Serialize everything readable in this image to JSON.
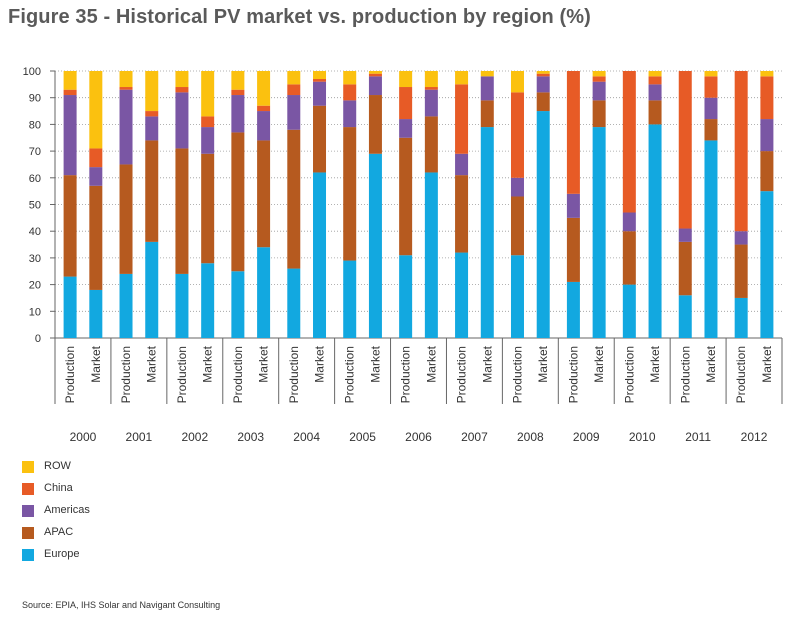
{
  "title": "Figure 35 - Historical PV market vs. production by region (%)",
  "source": "Source: EPIA, IHS Solar and Navigant Consulting",
  "colors": {
    "Europe": "#12a8e0",
    "APAC": "#b65a1f",
    "Americas": "#7a56a4",
    "China": "#e75b26",
    "ROW": "#fbc10f",
    "axis": "#666666",
    "grid": "#999999",
    "text": "#333333"
  },
  "legend": [
    {
      "name": "ROW",
      "color": "#fbc10f"
    },
    {
      "name": "China",
      "color": "#e75b26"
    },
    {
      "name": "Americas",
      "color": "#7a56a4"
    },
    {
      "name": "APAC",
      "color": "#b65a1f"
    },
    {
      "name": "Europe",
      "color": "#12a8e0"
    }
  ],
  "chart_data": {
    "type": "bar",
    "stacked": true,
    "title": "Figure 35 - Historical PV market vs. production by region (%)",
    "ylim": [
      0,
      100
    ],
    "yticks": [
      0,
      10,
      20,
      30,
      40,
      50,
      60,
      70,
      80,
      90,
      100
    ],
    "stack_order": [
      "Europe",
      "APAC",
      "Americas",
      "China",
      "ROW"
    ],
    "years": [
      "2000",
      "2001",
      "2002",
      "2003",
      "2004",
      "2005",
      "2006",
      "2007",
      "2008",
      "2009",
      "2010",
      "2011",
      "2012"
    ],
    "bar_labels": [
      "Production",
      "Market"
    ],
    "groups": [
      {
        "year": "2000",
        "bars": [
          {
            "label": "Production",
            "Europe": 23,
            "APAC": 38,
            "Americas": 30,
            "China": 2,
            "ROW": 7
          },
          {
            "label": "Market",
            "Europe": 18,
            "APAC": 39,
            "Americas": 7,
            "China": 7,
            "ROW": 29
          }
        ]
      },
      {
        "year": "2001",
        "bars": [
          {
            "label": "Production",
            "Europe": 24,
            "APAC": 41,
            "Americas": 28,
            "China": 1,
            "ROW": 6
          },
          {
            "label": "Market",
            "Europe": 36,
            "APAC": 38,
            "Americas": 9,
            "China": 2,
            "ROW": 15
          }
        ]
      },
      {
        "year": "2002",
        "bars": [
          {
            "label": "Production",
            "Europe": 24,
            "APAC": 47,
            "Americas": 21,
            "China": 2,
            "ROW": 6
          },
          {
            "label": "Market",
            "Europe": 28,
            "APAC": 41,
            "Americas": 10,
            "China": 4,
            "ROW": 17
          }
        ]
      },
      {
        "year": "2003",
        "bars": [
          {
            "label": "Production",
            "Europe": 25,
            "APAC": 52,
            "Americas": 14,
            "China": 2,
            "ROW": 7
          },
          {
            "label": "Market",
            "Europe": 34,
            "APAC": 40,
            "Americas": 11,
            "China": 2,
            "ROW": 13
          }
        ]
      },
      {
        "year": "2004",
        "bars": [
          {
            "label": "Production",
            "Europe": 26,
            "APAC": 52,
            "Americas": 13,
            "China": 4,
            "ROW": 5
          },
          {
            "label": "Market",
            "Europe": 62,
            "APAC": 25,
            "Americas": 9,
            "China": 1,
            "ROW": 3
          }
        ]
      },
      {
        "year": "2005",
        "bars": [
          {
            "label": "Production",
            "Europe": 29,
            "APAC": 50,
            "Americas": 10,
            "China": 6,
            "ROW": 5
          },
          {
            "label": "Market",
            "Europe": 69,
            "APAC": 22,
            "Americas": 7,
            "China": 1,
            "ROW": 1
          }
        ]
      },
      {
        "year": "2006",
        "bars": [
          {
            "label": "Production",
            "Europe": 31,
            "APAC": 44,
            "Americas": 7,
            "China": 12,
            "ROW": 6
          },
          {
            "label": "Market",
            "Europe": 62,
            "APAC": 21,
            "Americas": 10,
            "China": 1,
            "ROW": 6
          }
        ]
      },
      {
        "year": "2007",
        "bars": [
          {
            "label": "Production",
            "Europe": 32,
            "APAC": 29,
            "Americas": 8,
            "China": 26,
            "ROW": 5
          },
          {
            "label": "Market",
            "Europe": 79,
            "APAC": 10,
            "Americas": 9,
            "China": 0,
            "ROW": 2
          }
        ]
      },
      {
        "year": "2008",
        "bars": [
          {
            "label": "Production",
            "Europe": 31,
            "APAC": 22,
            "Americas": 7,
            "China": 32,
            "ROW": 8
          },
          {
            "label": "Market",
            "Europe": 85,
            "APAC": 7,
            "Americas": 6,
            "China": 1,
            "ROW": 1
          }
        ]
      },
      {
        "year": "2009",
        "bars": [
          {
            "label": "Production",
            "Europe": 21,
            "APAC": 24,
            "Americas": 9,
            "China": 46,
            "ROW": 0
          },
          {
            "label": "Market",
            "Europe": 79,
            "APAC": 10,
            "Americas": 7,
            "China": 2,
            "ROW": 2
          }
        ]
      },
      {
        "year": "2010",
        "bars": [
          {
            "label": "Production",
            "Europe": 20,
            "APAC": 20,
            "Americas": 7,
            "China": 53,
            "ROW": 0
          },
          {
            "label": "Market",
            "Europe": 80,
            "APAC": 9,
            "Americas": 6,
            "China": 3,
            "ROW": 2
          }
        ]
      },
      {
        "year": "2011",
        "bars": [
          {
            "label": "Production",
            "Europe": 16,
            "APAC": 20,
            "Americas": 5,
            "China": 59,
            "ROW": 0
          },
          {
            "label": "Market",
            "Europe": 74,
            "APAC": 8,
            "Americas": 8,
            "China": 8,
            "ROW": 2
          }
        ]
      },
      {
        "year": "2012",
        "bars": [
          {
            "label": "Production",
            "Europe": 15,
            "APAC": 20,
            "Americas": 5,
            "China": 60,
            "ROW": 0
          },
          {
            "label": "Market",
            "Europe": 55,
            "APAC": 15,
            "Americas": 12,
            "China": 16,
            "ROW": 2
          }
        ]
      }
    ]
  }
}
